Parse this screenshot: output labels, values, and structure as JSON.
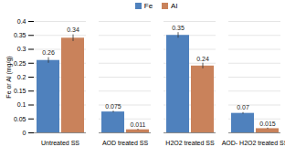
{
  "chart_data": {
    "type": "bar",
    "categories": [
      "Untreated SS",
      "AOD treated SS",
      "H2O2 treated SS",
      "AOD- H2O2 treated SS"
    ],
    "series": [
      {
        "name": "Fe",
        "color": "#4f81bd",
        "values": [
          0.26,
          0.075,
          0.35,
          0.07
        ],
        "errors": [
          0.01,
          0.003,
          0.01,
          0.003
        ]
      },
      {
        "name": "Al",
        "color": "#c9825b",
        "values": [
          0.34,
          0.011,
          0.24,
          0.015
        ],
        "errors": [
          0.012,
          0.002,
          0.01,
          0.002
        ]
      }
    ],
    "y_label": "Fe or Al (mg/g)",
    "ylim": [
      0,
      0.4
    ],
    "yticks": [
      0,
      0.05,
      0.1,
      0.15,
      0.2,
      0.25,
      0.3,
      0.35,
      0.4
    ],
    "grid": true,
    "legend": "top",
    "data_labels": true
  }
}
